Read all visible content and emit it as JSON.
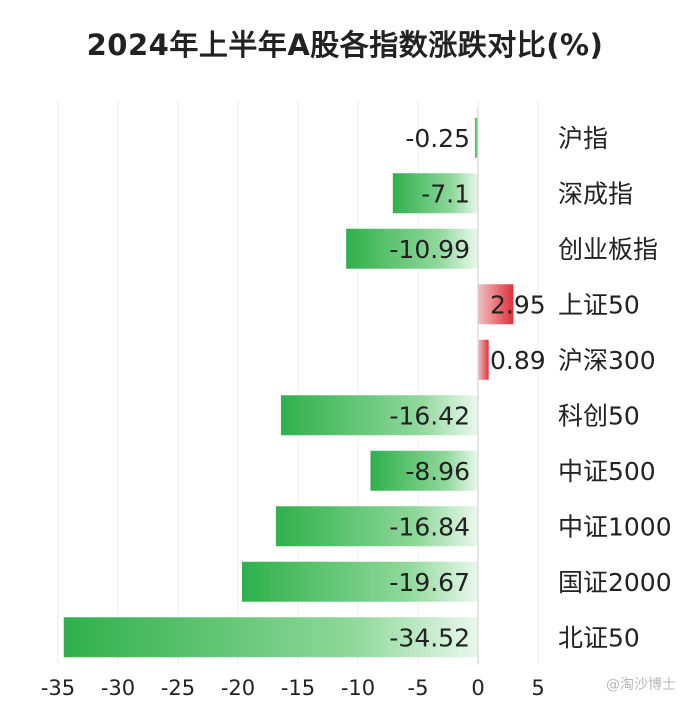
{
  "title": "2024年上半年A股各指数涨跌对比(%)",
  "watermark_text": "@淘沙博士",
  "colors": {
    "negative": "#3dbb55",
    "positive": "#e0353c",
    "text": "#222222",
    "axis": "#9a9a9a",
    "grid": "#ececec"
  },
  "chart_data": {
    "type": "bar",
    "orientation": "horizontal",
    "title": "2024年上半年A股各指数涨跌对比(%)",
    "categories": [
      "沪指",
      "深成指",
      "创业板指",
      "上证50",
      "沪深300",
      "科创50",
      "中证500",
      "中证1000",
      "国证2000",
      "北证50"
    ],
    "values": [
      -0.25,
      -7.1,
      -10.99,
      2.95,
      0.89,
      -16.42,
      -8.96,
      -16.84,
      -19.67,
      -34.52
    ],
    "value_labels": [
      "-0.25",
      "-7.1",
      "-10.99",
      "2.95",
      "0.89",
      "-16.42",
      "-8.96",
      "-16.84",
      "-19.67",
      "-34.52"
    ],
    "xlim": [
      -35,
      5
    ],
    "xticks": [
      -35,
      -30,
      -25,
      -20,
      -15,
      -10,
      -5,
      0,
      5
    ],
    "xtick_labels": [
      "-35",
      "-30",
      "-25",
      "-20",
      "-15",
      "-10",
      "-5",
      "0",
      "5"
    ],
    "grid": true
  }
}
